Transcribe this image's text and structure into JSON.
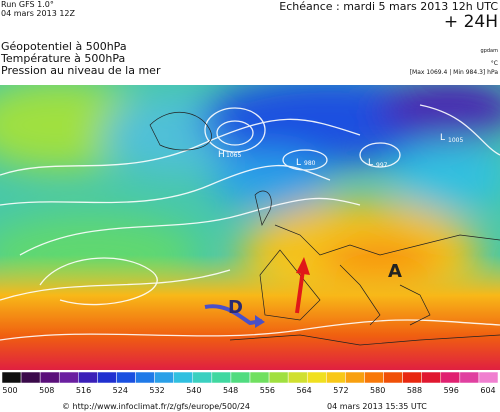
{
  "header": {
    "run": "Run GFS 1.0°",
    "run_date": "04 mars 2013 12Z",
    "forecast": "Echéance : mardi 5 mars 2013 12h UTC",
    "lead": "+ 24H",
    "fields": [
      "Géopotentiel à 500hPa",
      "Température à 500hPa",
      "Pression au niveau de la mer"
    ],
    "units": [
      "gpdam",
      "°C"
    ],
    "range": "[Max 1069.4 | Min 984.3] hPa"
  },
  "map": {
    "labels": [
      "H",
      "1065",
      "L",
      "980",
      "L",
      "997",
      "L",
      "1005",
      "D",
      "A"
    ]
  },
  "legend": {
    "ticks": [
      500,
      508,
      516,
      524,
      532,
      540,
      548,
      556,
      564,
      572,
      580,
      588,
      596,
      604
    ],
    "colors": [
      "#101010",
      "#3a0a4a",
      "#5a0f7a",
      "#6a1fa0",
      "#3a1fb8",
      "#2030d0",
      "#1a50e0",
      "#1f7ae8",
      "#2aa0e8",
      "#30c0e0",
      "#3ad0c0",
      "#40d8a0",
      "#50dc80",
      "#70e060",
      "#a0e040",
      "#d0e030",
      "#f0e020",
      "#f8c818",
      "#f8a010",
      "#f87808",
      "#f05008",
      "#e82810",
      "#e01830",
      "#e02070",
      "#e040a0",
      "#f080d0"
    ]
  },
  "footer": {
    "url": "© http://www.infoclimat.fr/z/gfs/europe/500/24",
    "timestamp": "04 mars 2013 15:35 UTC"
  }
}
